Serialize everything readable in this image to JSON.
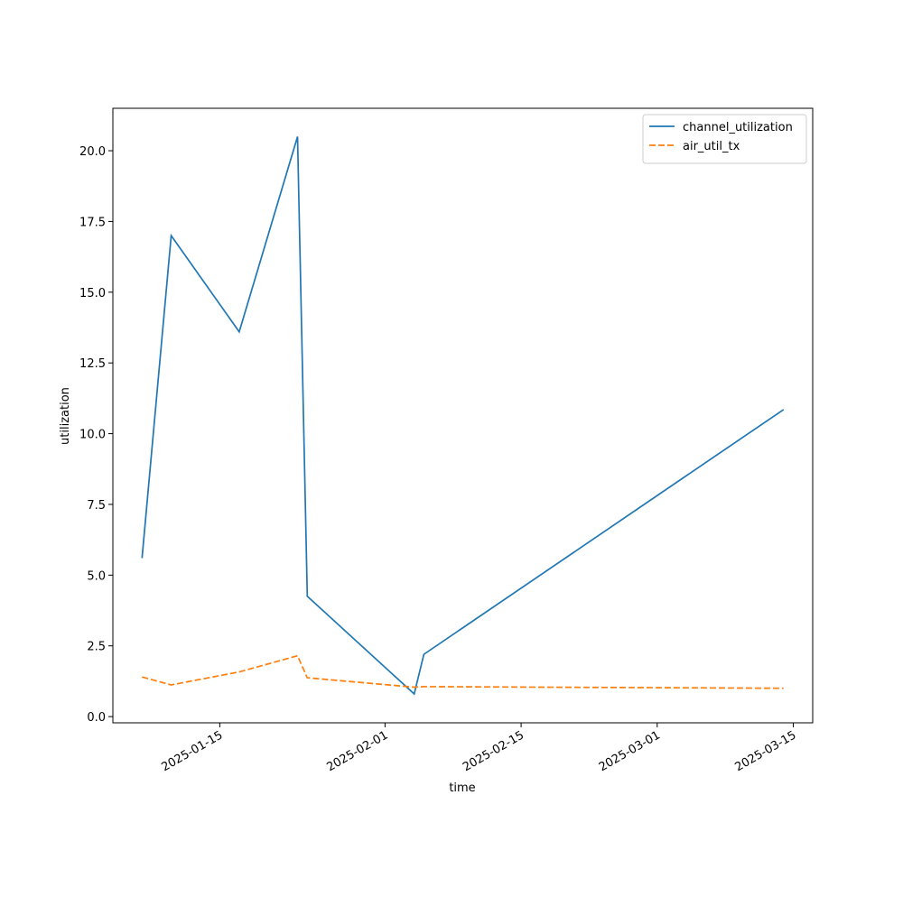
{
  "chart_data": {
    "type": "line",
    "xlabel": "time",
    "ylabel": "utilization",
    "x": [
      "2025-01-07",
      "2025-01-10",
      "2025-01-17",
      "2025-01-23",
      "2025-01-24",
      "2025-02-04",
      "2025-02-05",
      "2025-03-14"
    ],
    "series": [
      {
        "name": "channel_utilization",
        "color": "#1f77b4",
        "linestyle": "solid",
        "values": [
          5.6,
          17.0,
          13.6,
          20.5,
          4.25,
          0.8,
          2.2,
          10.85
        ]
      },
      {
        "name": "air_util_tx",
        "color": "#ff7f0e",
        "linestyle": "dashed",
        "values": [
          1.4,
          1.12,
          1.58,
          2.15,
          1.37,
          1.04,
          1.06,
          1.0
        ]
      }
    ],
    "xlim": [
      "2025-01-04",
      "2025-03-17"
    ],
    "xticks": [
      "2025-01-15",
      "2025-02-01",
      "2025-02-15",
      "2025-03-01",
      "2025-03-15"
    ],
    "ylim": [
      -0.22,
      21.5
    ],
    "yticks": [
      {
        "value": 0,
        "label": "0.0"
      },
      2.5,
      {
        "value": 5,
        "label": "5.0"
      },
      7.5,
      {
        "value": 10,
        "label": "10.0"
      },
      12.5,
      {
        "value": 15,
        "label": "15.0"
      },
      17.5,
      {
        "value": 20,
        "label": "20.0"
      }
    ],
    "grid": false,
    "legend": "upper right"
  }
}
